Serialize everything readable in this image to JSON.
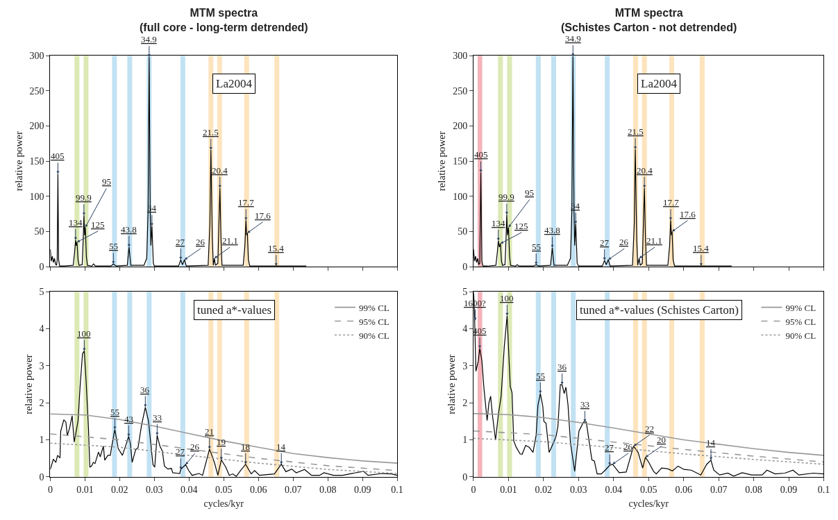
{
  "chart_data": [
    {
      "type": "line",
      "title": "MTM spectra\n(full core - long-term detrended)",
      "ylabel": "relative power",
      "xlim": [
        0,
        0.1
      ],
      "xticks": [
        0,
        0.01,
        0.02,
        0.03,
        0.04,
        0.05,
        0.06,
        0.07,
        0.08,
        0.09,
        0.1
      ],
      "ylim": [
        0,
        300
      ],
      "yticks": [
        0,
        50,
        100,
        150,
        200,
        250,
        300
      ],
      "tick_labels": "y",
      "grid": false,
      "series": [
        {
          "color": "#000000",
          "line_style": "solid",
          "x": [
            0,
            0.0003,
            0.0006,
            0.0009,
            0.0012,
            0.0015,
            0.0018,
            0.002,
            0.0022,
            0.0024,
            0.0027,
            0.004,
            0.0066,
            0.007,
            0.0073,
            0.0075,
            0.0077,
            0.008,
            0.0083,
            0.0092,
            0.0095,
            0.0097,
            0.0099,
            0.0101,
            0.0104,
            0.0107,
            0.012,
            0.0125,
            0.013,
            0.0175,
            0.0182,
            0.019,
            0.0222,
            0.0227,
            0.0232,
            0.027,
            0.0278,
            0.0282,
            0.0285,
            0.0288,
            0.029,
            0.0293,
            0.0297,
            0.03,
            0.037,
            0.0376,
            0.0381,
            0.0387,
            0.0392,
            0.0455,
            0.046,
            0.0463,
            0.0467,
            0.047,
            0.0473,
            0.0476,
            0.0483,
            0.0486,
            0.0489,
            0.0492,
            0.0495,
            0.0556,
            0.0561,
            0.0564,
            0.0566,
            0.0568,
            0.0571,
            0.0575,
            0.0651,
            0.0738
          ],
          "values": [
            25,
            8,
            15,
            6,
            12,
            4,
            2,
            10,
            132,
            10,
            1,
            1,
            2,
            20,
            38,
            30,
            35,
            10,
            2,
            3,
            40,
            73,
            45,
            56,
            15,
            2,
            1,
            4,
            1,
            1,
            4,
            1,
            2,
            28,
            2,
            2,
            12,
            80,
            298,
            80,
            30,
            58,
            5,
            1,
            1,
            10,
            3,
            10,
            1,
            2,
            60,
            166,
            40,
            2,
            12,
            2,
            5,
            60,
            112,
            40,
            2,
            2,
            30,
            66,
            45,
            48,
            10,
            1,
            1,
            1
          ]
        }
      ],
      "bands": [
        {
          "axis": "x",
          "from": 0.007,
          "to": 0.0084,
          "color": "#dce9b5"
        },
        {
          "axis": "x",
          "from": 0.0096,
          "to": 0.011,
          "color": "#dce9b5"
        },
        {
          "axis": "x",
          "from": 0.0178,
          "to": 0.0192,
          "color": "#c2e2f3"
        },
        {
          "axis": "x",
          "from": 0.0222,
          "to": 0.0236,
          "color": "#c2e2f3"
        },
        {
          "axis": "x",
          "from": 0.0278,
          "to": 0.0292,
          "color": "#c2e2f3"
        },
        {
          "axis": "x",
          "from": 0.0375,
          "to": 0.0389,
          "color": "#c2e2f3"
        },
        {
          "axis": "x",
          "from": 0.0456,
          "to": 0.047,
          "color": "#fde4bd"
        },
        {
          "axis": "x",
          "from": 0.0481,
          "to": 0.0495,
          "color": "#fde4bd"
        },
        {
          "axis": "x",
          "from": 0.0559,
          "to": 0.0573,
          "color": "#fde4bd"
        },
        {
          "axis": "x",
          "from": 0.0646,
          "to": 0.066,
          "color": "#fde4bd"
        }
      ],
      "annotations": [
        "La2004",
        {
          "text": "405",
          "x": 0.0022,
          "y": 132
        },
        {
          "text": "134",
          "x": 0.0073,
          "y": 38
        },
        {
          "text": "125",
          "x": 0.0077,
          "y": 35
        },
        {
          "text": "99.9",
          "x": 0.0097,
          "y": 73
        },
        {
          "text": "95",
          "x": 0.0101,
          "y": 56
        },
        {
          "text": "55",
          "x": 0.0182,
          "y": 4
        },
        {
          "text": "43.8",
          "x": 0.0227,
          "y": 28
        },
        {
          "text": "34.9",
          "x": 0.0285,
          "y": 298
        },
        {
          "text": "34",
          "x": 0.0293,
          "y": 58
        },
        {
          "text": "27",
          "x": 0.0376,
          "y": 10
        },
        {
          "text": "26",
          "x": 0.0387,
          "y": 10
        },
        {
          "text": "21.5",
          "x": 0.0463,
          "y": 166
        },
        {
          "text": "21.1",
          "x": 0.0473,
          "y": 12
        },
        {
          "text": "20.4",
          "x": 0.0489,
          "y": 112
        },
        {
          "text": "17.7",
          "x": 0.0564,
          "y": 66
        },
        {
          "text": "17.6",
          "x": 0.0568,
          "y": 48
        },
        {
          "text": "15.4",
          "x": 0.0651,
          "y": 1
        }
      ]
    },
    {
      "type": "line",
      "title": "MTM spectra\n(Schistes Carton - not detrended)",
      "ylabel": "relative power",
      "xlim": [
        0,
        0.1
      ],
      "xticks": [
        0,
        0.01,
        0.02,
        0.03,
        0.04,
        0.05,
        0.06,
        0.07,
        0.08,
        0.09,
        0.1
      ],
      "ylim": [
        0,
        300
      ],
      "yticks": [
        0,
        50,
        100,
        150,
        200,
        250,
        300
      ],
      "tick_labels": "y",
      "grid": false,
      "series": [
        {
          "color": "#000000",
          "line_style": "solid",
          "x": [
            0,
            0.0003,
            0.0006,
            0.0009,
            0.0012,
            0.0015,
            0.0018,
            0.0021,
            0.0024,
            0.0027,
            0.004,
            0.0064,
            0.0068,
            0.0071,
            0.0074,
            0.0077,
            0.008,
            0.0083,
            0.009,
            0.0093,
            0.0095,
            0.0097,
            0.01,
            0.0103,
            0.0106,
            0.012,
            0.0125,
            0.013,
            0.0172,
            0.0179,
            0.0186,
            0.022,
            0.0225,
            0.023,
            0.0268,
            0.0277,
            0.0281,
            0.0284,
            0.0287,
            0.0289,
            0.0292,
            0.0296,
            0.03,
            0.0368,
            0.0374,
            0.0379,
            0.0385,
            0.039,
            0.0454,
            0.0459,
            0.0462,
            0.0466,
            0.0469,
            0.0473,
            0.0476,
            0.0482,
            0.0485,
            0.0488,
            0.0491,
            0.0494,
            0.0555,
            0.056,
            0.0563,
            0.0565,
            0.0567,
            0.057,
            0.0574,
            0.065,
            0.0737
          ],
          "values": [
            25,
            8,
            15,
            6,
            12,
            3,
            5,
            134,
            8,
            1,
            1,
            2,
            20,
            37,
            28,
            33,
            8,
            2,
            3,
            40,
            74,
            45,
            56,
            15,
            2,
            1,
            3,
            1,
            1,
            3,
            1,
            2,
            27,
            2,
            2,
            12,
            80,
            299,
            80,
            30,
            61,
            5,
            1,
            1,
            9,
            3,
            10,
            1,
            2,
            60,
            167,
            40,
            2,
            12,
            2,
            5,
            60,
            112,
            40,
            2,
            2,
            30,
            66,
            45,
            50,
            10,
            1,
            1,
            1
          ]
        }
      ],
      "bands": [
        {
          "axis": "x",
          "from": 0.0012,
          "to": 0.0025,
          "color": "#f5b3ba"
        },
        {
          "axis": "x",
          "from": 0.007,
          "to": 0.0084,
          "color": "#dce9b5"
        },
        {
          "axis": "x",
          "from": 0.0096,
          "to": 0.011,
          "color": "#dce9b5"
        },
        {
          "axis": "x",
          "from": 0.0178,
          "to": 0.0192,
          "color": "#c2e2f3"
        },
        {
          "axis": "x",
          "from": 0.0222,
          "to": 0.0236,
          "color": "#c2e2f3"
        },
        {
          "axis": "x",
          "from": 0.0278,
          "to": 0.0292,
          "color": "#c2e2f3"
        },
        {
          "axis": "x",
          "from": 0.0375,
          "to": 0.0389,
          "color": "#c2e2f3"
        },
        {
          "axis": "x",
          "from": 0.0456,
          "to": 0.047,
          "color": "#fde4bd"
        },
        {
          "axis": "x",
          "from": 0.0481,
          "to": 0.0495,
          "color": "#fde4bd"
        },
        {
          "axis": "x",
          "from": 0.0559,
          "to": 0.0573,
          "color": "#fde4bd"
        },
        {
          "axis": "x",
          "from": 0.0646,
          "to": 0.066,
          "color": "#fde4bd"
        }
      ],
      "annotations": [
        "La2004",
        {
          "text": "405",
          "x": 0.0021,
          "y": 134
        },
        {
          "text": "134",
          "x": 0.0071,
          "y": 37
        },
        {
          "text": "125",
          "x": 0.0077,
          "y": 33
        },
        {
          "text": "99.9",
          "x": 0.0095,
          "y": 74
        },
        {
          "text": "95",
          "x": 0.01,
          "y": 56
        },
        {
          "text": "55",
          "x": 0.0179,
          "y": 3
        },
        {
          "text": "43.8",
          "x": 0.0225,
          "y": 27
        },
        {
          "text": "34.9",
          "x": 0.0284,
          "y": 299
        },
        {
          "text": "34",
          "x": 0.0292,
          "y": 61
        },
        {
          "text": "27",
          "x": 0.0374,
          "y": 9
        },
        {
          "text": "26",
          "x": 0.0385,
          "y": 10
        },
        {
          "text": "21.5",
          "x": 0.0462,
          "y": 167
        },
        {
          "text": "21.1",
          "x": 0.0473,
          "y": 12
        },
        {
          "text": "20.4",
          "x": 0.0488,
          "y": 112
        },
        {
          "text": "17.7",
          "x": 0.0563,
          "y": 66
        },
        {
          "text": "17.6",
          "x": 0.0567,
          "y": 50
        },
        {
          "text": "15.4",
          "x": 0.065,
          "y": 1
        }
      ]
    },
    {
      "type": "line",
      "xlabel": "cycles/kyr",
      "ylabel": "relative power",
      "xlim": [
        0,
        0.1
      ],
      "xticks": [
        0,
        0.01,
        0.02,
        0.03,
        0.04,
        0.05,
        0.06,
        0.07,
        0.08,
        0.09,
        0.1
      ],
      "ylim": [
        0,
        5
      ],
      "yticks": [
        0,
        1,
        2,
        3,
        4,
        5
      ],
      "grid": false,
      "legend": "top right",
      "series": [
        {
          "color": "#000000",
          "line_style": "solid",
          "x": [
            0,
            0.0009,
            0.0016,
            0.0021,
            0.0028,
            0.003,
            0.0039,
            0.0045,
            0.0049,
            0.0056,
            0.0063,
            0.0069,
            0.008,
            0.0086,
            0.0093,
            0.0098,
            0.0103,
            0.011,
            0.0114,
            0.0119,
            0.0124,
            0.0129,
            0.0139,
            0.0144,
            0.0153,
            0.0157,
            0.0166,
            0.0173,
            0.0176,
            0.0186,
            0.0196,
            0.0208,
            0.0219,
            0.0226,
            0.0231,
            0.0236,
            0.0246,
            0.0253,
            0.0263,
            0.0274,
            0.0283,
            0.0296,
            0.0301,
            0.0308,
            0.0316,
            0.0323,
            0.0329,
            0.0339,
            0.0349,
            0.0353,
            0.0373,
            0.0376,
            0.039,
            0.0399,
            0.0409,
            0.0429,
            0.0439,
            0.0459,
            0.0473,
            0.0483,
            0.0493,
            0.0506,
            0.0516,
            0.0526,
            0.0536,
            0.0546,
            0.0563,
            0.0579,
            0.0589,
            0.0603,
            0.0646,
            0.0666,
            0.0679,
            0.0696,
            0.0709,
            0.0733,
            0.0753,
            0.0776,
            0.0789,
            0.0816,
            0.0843,
            0.0863,
            0.0903,
            0.0916,
            0.0956,
            0.0983,
            0.1
          ],
          "values": [
            0.2,
            0.48,
            0.39,
            0.58,
            0.51,
            1.23,
            1.54,
            1.48,
            1.11,
            1.33,
            1.65,
            0.94,
            1.51,
            2.45,
            3.33,
            3.4,
            2.64,
            1.33,
            0.26,
            0.29,
            0.39,
            0.36,
            0.67,
            0.54,
            0.83,
            0.45,
            0.58,
            0.58,
            0.76,
            1.28,
            0.76,
            0.58,
            0.89,
            1.09,
            0.89,
            0.39,
            0.73,
            0.79,
            1.39,
            1.88,
            1.51,
            0.33,
            0.26,
            1.12,
            0.83,
            0.7,
            0.29,
            0.21,
            0.23,
            0.11,
            0.09,
            0.2,
            0.33,
            0.17,
            0.04,
            0.09,
            0.04,
            0.75,
            0.39,
            0.04,
            0.46,
            0.26,
            0.04,
            0.08,
            0.01,
            0.14,
            0.34,
            0.08,
            0.17,
            0.04,
            0.08,
            0.34,
            0.14,
            0.21,
            0.11,
            0.2,
            0.04,
            0.04,
            0.11,
            0.04,
            0.04,
            0.08,
            0.15,
            0.04,
            0.09,
            0.08,
            0.04
          ]
        },
        {
          "name": "99% CL",
          "color": "#999999",
          "line_style": "solid",
          "x": [
            0,
            0.01,
            0.02,
            0.03,
            0.04,
            0.05,
            0.06,
            0.07,
            0.08,
            0.09,
            0.1
          ],
          "values": [
            1.7,
            1.67,
            1.55,
            1.37,
            1.17,
            0.97,
            0.8,
            0.63,
            0.52,
            0.43,
            0.37
          ]
        },
        {
          "name": "95% CL",
          "color": "#999999",
          "line_style": "dashed",
          "x": [
            0,
            0.02,
            0.04,
            0.06,
            0.08,
            0.1
          ],
          "values": [
            1.16,
            1.0,
            0.75,
            0.5,
            0.3,
            0.17
          ]
        },
        {
          "name": "90% CL",
          "color": "#999999",
          "line_style": "dotted",
          "x": [
            0,
            0.02,
            0.04,
            0.06,
            0.08,
            0.1
          ],
          "values": [
            0.91,
            0.8,
            0.58,
            0.37,
            0.2,
            0.09
          ]
        }
      ],
      "bands": [
        {
          "axis": "x",
          "from": 0.007,
          "to": 0.0084,
          "color": "#dce9b5"
        },
        {
          "axis": "x",
          "from": 0.0096,
          "to": 0.011,
          "color": "#dce9b5"
        },
        {
          "axis": "x",
          "from": 0.0178,
          "to": 0.0192,
          "color": "#c2e2f3"
        },
        {
          "axis": "x",
          "from": 0.0222,
          "to": 0.0236,
          "color": "#c2e2f3"
        },
        {
          "axis": "x",
          "from": 0.0278,
          "to": 0.0292,
          "color": "#c2e2f3"
        },
        {
          "axis": "x",
          "from": 0.0375,
          "to": 0.0389,
          "color": "#c2e2f3"
        },
        {
          "axis": "x",
          "from": 0.0456,
          "to": 0.047,
          "color": "#fde4bd"
        },
        {
          "axis": "x",
          "from": 0.0481,
          "to": 0.0495,
          "color": "#fde4bd"
        },
        {
          "axis": "x",
          "from": 0.0559,
          "to": 0.0573,
          "color": "#fde4bd"
        },
        {
          "axis": "x",
          "from": 0.0646,
          "to": 0.066,
          "color": "#fde4bd"
        }
      ],
      "annotations": [
        "tuned a*-values",
        {
          "text": "100",
          "x": 0.0098,
          "y": 3.4
        },
        {
          "text": "55",
          "x": 0.0186,
          "y": 1.28
        },
        {
          "text": "43",
          "x": 0.0226,
          "y": 1.09
        },
        {
          "text": "36",
          "x": 0.0274,
          "y": 1.88
        },
        {
          "text": "33",
          "x": 0.0308,
          "y": 1.12
        },
        {
          "text": "27",
          "x": 0.0376,
          "y": 0.2
        },
        {
          "text": "26",
          "x": 0.039,
          "y": 0.33
        },
        {
          "text": "21",
          "x": 0.0459,
          "y": 0.75
        },
        {
          "text": "19",
          "x": 0.0493,
          "y": 0.46
        },
        {
          "text": "18",
          "x": 0.0563,
          "y": 0.34
        },
        {
          "text": "14",
          "x": 0.0666,
          "y": 0.34
        }
      ]
    },
    {
      "type": "line",
      "xlabel": "cycles/kyr",
      "ylabel": "relative power",
      "xlim": [
        0,
        0.1
      ],
      "xticks": [
        0,
        0.01,
        0.02,
        0.03,
        0.04,
        0.05,
        0.06,
        0.07,
        0.08,
        0.09,
        0.1
      ],
      "ylim": [
        0,
        5
      ],
      "yticks": [
        0,
        1,
        2,
        3,
        4,
        5
      ],
      "grid": false,
      "legend": "top right",
      "series": [
        {
          "color": "#000000",
          "line_style": "solid",
          "x": [
            0,
            0.0002,
            0.0007,
            0.0014,
            0.0018,
            0.0024,
            0.003,
            0.0039,
            0.0044,
            0.0049,
            0.0054,
            0.0063,
            0.0071,
            0.0079,
            0.0088,
            0.0096,
            0.0105,
            0.011,
            0.0115,
            0.0122,
            0.0133,
            0.0139,
            0.0149,
            0.0159,
            0.017,
            0.0179,
            0.0184,
            0.0191,
            0.0198,
            0.0201,
            0.0207,
            0.0216,
            0.0228,
            0.0236,
            0.0241,
            0.0248,
            0.0253,
            0.0259,
            0.0264,
            0.027,
            0.0277,
            0.0289,
            0.0294,
            0.0301,
            0.0314,
            0.0322,
            0.0331,
            0.0338,
            0.0345,
            0.0353,
            0.0365,
            0.0376,
            0.0389,
            0.0397,
            0.0416,
            0.0436,
            0.0457,
            0.047,
            0.0483,
            0.0491,
            0.05,
            0.0514,
            0.0522,
            0.0537,
            0.0554,
            0.0568,
            0.0584,
            0.0601,
            0.0622,
            0.0649,
            0.0666,
            0.0678,
            0.0686,
            0.0703,
            0.0726,
            0.0743,
            0.0767,
            0.0794,
            0.0824,
            0.0838,
            0.0861,
            0.0889,
            0.0912,
            0.0929,
            0.097,
            0.1
          ],
          "values": [
            4.99,
            4.73,
            2.85,
            3.14,
            3.47,
            3.14,
            2.38,
            1.52,
            1.99,
            2.18,
            1.68,
            0.99,
            1.68,
            2.18,
            3.52,
            4.35,
            2.44,
            2.28,
            0.97,
            0.8,
            0.62,
            0.61,
            0.85,
            0.8,
            0.66,
            1.13,
            1.93,
            2.25,
            1.9,
            1.5,
            1.45,
            0.66,
            0.91,
            1.1,
            1.36,
            2.49,
            2.49,
            2.25,
            2.42,
            1.93,
            0.91,
            0.15,
            0.59,
            1.23,
            1.48,
            1.48,
            0.91,
            0.46,
            0.43,
            0.08,
            0.08,
            0.18,
            0.31,
            0.34,
            0.11,
            0.13,
            0.83,
            0.66,
            0.24,
            0.53,
            0.4,
            0.15,
            0.08,
            0.24,
            0.22,
            0.16,
            0.29,
            0.2,
            0.18,
            0.05,
            0.34,
            0.45,
            0.18,
            0.05,
            0.1,
            0.02,
            0.11,
            0.05,
            0.05,
            0.18,
            0.08,
            0.1,
            0.18,
            0.05,
            0.1,
            0.08
          ]
        },
        {
          "name": "99% CL",
          "color": "#999999",
          "line_style": "solid",
          "x": [
            0,
            0.01,
            0.02,
            0.03,
            0.04,
            0.05,
            0.06,
            0.07,
            0.08,
            0.09,
            0.1
          ],
          "values": [
            1.71,
            1.68,
            1.6,
            1.47,
            1.32,
            1.16,
            1.0,
            0.88,
            0.76,
            0.66,
            0.58
          ]
        },
        {
          "name": "95% CL",
          "color": "#999999",
          "line_style": "dashed",
          "x": [
            0,
            0.02,
            0.04,
            0.06,
            0.08,
            0.1
          ],
          "values": [
            1.24,
            1.14,
            0.94,
            0.74,
            0.56,
            0.4
          ]
        },
        {
          "name": "90% CL",
          "color": "#999999",
          "line_style": "dotted",
          "x": [
            0,
            0.02,
            0.04,
            0.06,
            0.08,
            0.1
          ],
          "values": [
            1.04,
            0.95,
            0.79,
            0.62,
            0.47,
            0.34
          ]
        }
      ],
      "bands": [
        {
          "axis": "x",
          "from": 0.0012,
          "to": 0.0025,
          "color": "#f5b3ba"
        },
        {
          "axis": "x",
          "from": 0.007,
          "to": 0.0084,
          "color": "#dce9b5"
        },
        {
          "axis": "x",
          "from": 0.0096,
          "to": 0.011,
          "color": "#dce9b5"
        },
        {
          "axis": "x",
          "from": 0.0178,
          "to": 0.0192,
          "color": "#c2e2f3"
        },
        {
          "axis": "x",
          "from": 0.0222,
          "to": 0.0236,
          "color": "#c2e2f3"
        },
        {
          "axis": "x",
          "from": 0.0278,
          "to": 0.0292,
          "color": "#c2e2f3"
        },
        {
          "axis": "x",
          "from": 0.0375,
          "to": 0.0389,
          "color": "#c2e2f3"
        },
        {
          "axis": "x",
          "from": 0.0456,
          "to": 0.047,
          "color": "#fde4bd"
        },
        {
          "axis": "x",
          "from": 0.0481,
          "to": 0.0495,
          "color": "#fde4bd"
        },
        {
          "axis": "x",
          "from": 0.0559,
          "to": 0.0573,
          "color": "#fde4bd"
        },
        {
          "axis": "x",
          "from": 0.0646,
          "to": 0.066,
          "color": "#fde4bd"
        }
      ],
      "annotations": [
        "tuned a*-values (Schistes Carton)",
        {
          "text": "1600?",
          "x": 0.0005,
          "y": 4.22
        },
        {
          "text": "405",
          "x": 0.0018,
          "y": 3.47
        },
        {
          "text": "100",
          "x": 0.0096,
          "y": 4.35
        },
        {
          "text": "55",
          "x": 0.0191,
          "y": 2.25
        },
        {
          "text": "36",
          "x": 0.0253,
          "y": 2.49
        },
        {
          "text": "33",
          "x": 0.0318,
          "y": 1.48
        },
        {
          "text": "27",
          "x": 0.0389,
          "y": 0.31
        },
        {
          "text": "26",
          "x": 0.0397,
          "y": 0.34
        },
        {
          "text": "22",
          "x": 0.0457,
          "y": 0.83
        },
        {
          "text": "20",
          "x": 0.0491,
          "y": 0.53
        },
        {
          "text": "14",
          "x": 0.0678,
          "y": 0.45
        }
      ]
    }
  ]
}
